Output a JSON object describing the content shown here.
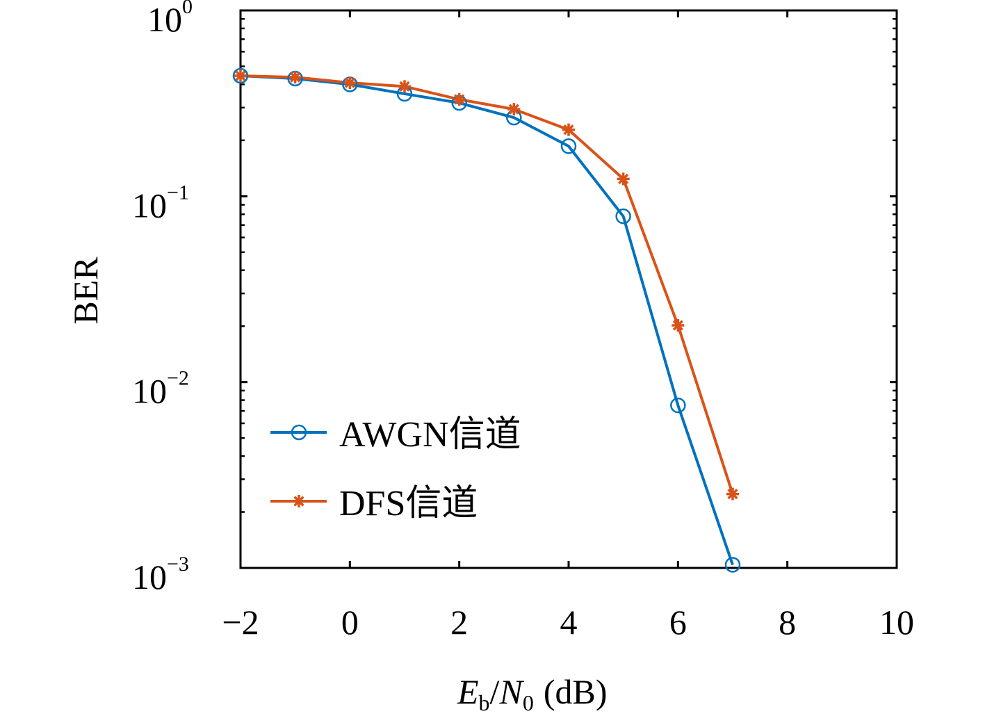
{
  "chart_data": {
    "type": "line",
    "title": "",
    "xlabel": {
      "E": "E",
      "b": "b",
      "slash": "/",
      "N": "N",
      "zero": "0",
      "unit": "(dB)"
    },
    "ylabel": "BER",
    "yscale": "log",
    "xlim": [
      -2,
      10
    ],
    "ylim": [
      0.001,
      1
    ],
    "x_ticks": [
      -2,
      0,
      2,
      4,
      6,
      8,
      10
    ],
    "x_tick_labels": [
      "−2",
      "0",
      "2",
      "4",
      "6",
      "8",
      "10"
    ],
    "y_ticks": [
      1,
      0.1,
      0.01,
      0.001
    ],
    "y_tick_labels": [
      {
        "base": "10",
        "exp": "0"
      },
      {
        "base": "10",
        "exp": "−1"
      },
      {
        "base": "10",
        "exp": "−2"
      },
      {
        "base": "10",
        "exp": "−3"
      }
    ],
    "x": [
      -2,
      -1,
      0,
      1,
      2,
      3,
      4,
      5,
      6,
      7
    ],
    "series": [
      {
        "name": "AWGN信道",
        "marker": "circle",
        "color": "#0072BD",
        "values": [
          0.445,
          0.43,
          0.4,
          0.356,
          0.318,
          0.265,
          0.186,
          0.078,
          0.0075,
          0.00104
        ]
      },
      {
        "name": "DFS信道",
        "marker": "asterisk",
        "color": "#D95319",
        "values": [
          0.445,
          0.437,
          0.408,
          0.39,
          0.332,
          0.294,
          0.228,
          0.124,
          0.0202,
          0.0025
        ]
      }
    ],
    "legend_position": "bottom-left",
    "grid": false
  }
}
